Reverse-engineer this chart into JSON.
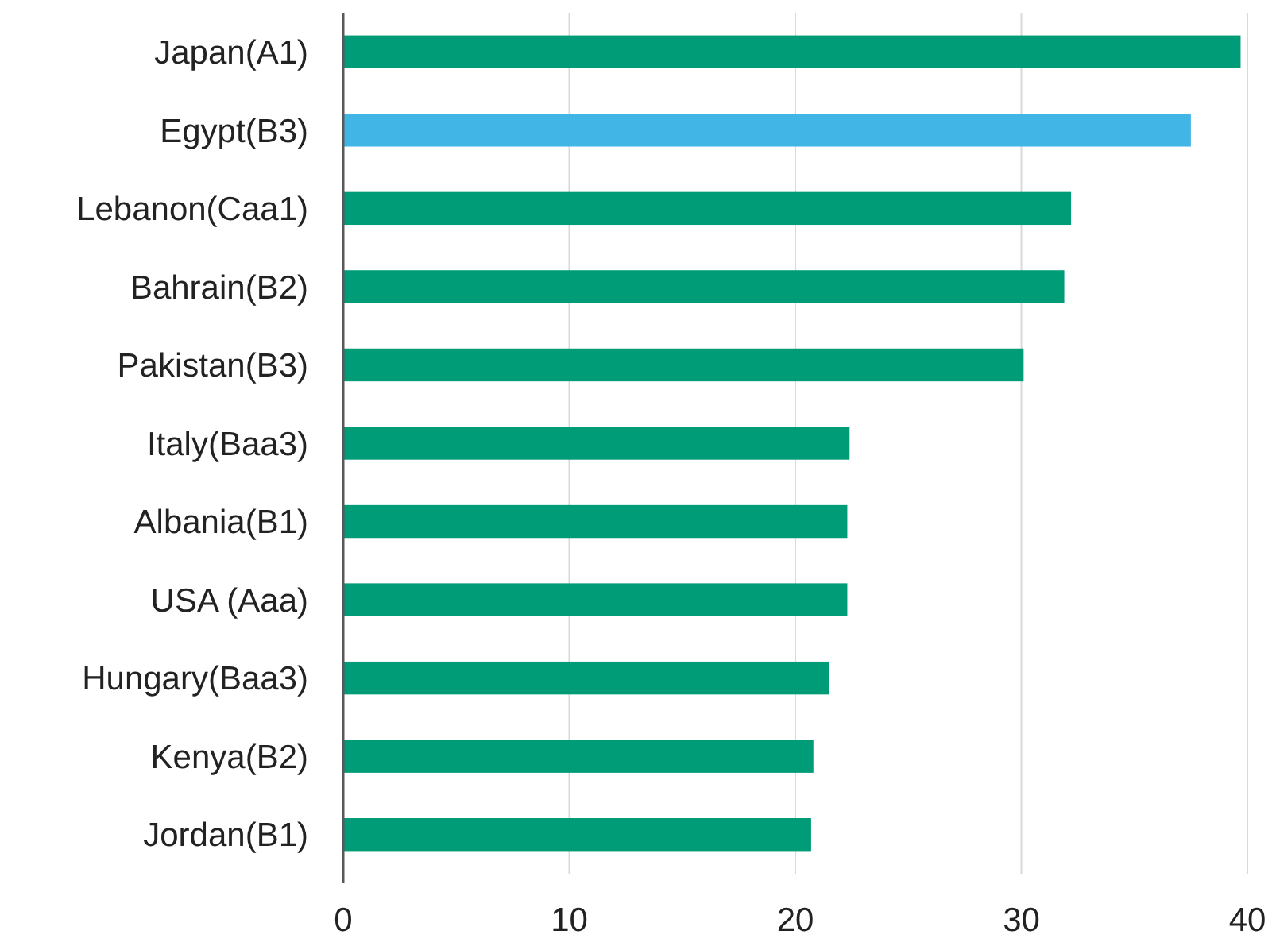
{
  "chart_data": {
    "type": "bar",
    "orientation": "horizontal",
    "categories": [
      "Japan(A1)",
      "Egypt(B3)",
      "Lebanon(Caa1)",
      "Bahrain(B2)",
      "Pakistan(B3)",
      "Italy(Baa3)",
      "Albania(B1)",
      "USA (Aaa)",
      "Hungary(Baa3)",
      "Kenya(B2)",
      "Jordan(B1)"
    ],
    "values": [
      39.7,
      37.5,
      32.2,
      31.9,
      30.1,
      22.4,
      22.3,
      22.3,
      21.5,
      20.8,
      20.7
    ],
    "colors": [
      "#009b77",
      "#41b6e6",
      "#009b77",
      "#009b77",
      "#009b77",
      "#009b77",
      "#009b77",
      "#009b77",
      "#009b77",
      "#009b77",
      "#009b77"
    ],
    "xlim": [
      0,
      40
    ],
    "xticks": [
      0,
      10,
      20,
      30,
      40
    ],
    "grid": "x"
  }
}
